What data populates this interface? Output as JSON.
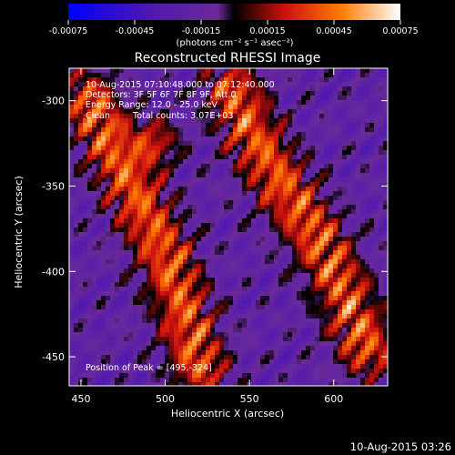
{
  "chart_data": {
    "type": "heatmap",
    "title": "Reconstructed RHESSI Image",
    "xlabel": "Heliocentric X (arcsec)",
    "ylabel": "Heliocentric Y (arcsec)",
    "xlim": [
      443,
      632
    ],
    "ylim": [
      -467,
      -281
    ],
    "x_ticks": [
      450,
      500,
      550,
      600
    ],
    "y_ticks": [
      -300,
      -350,
      -400,
      -450
    ],
    "colorbar": {
      "range": [
        -0.00075,
        0.00075
      ],
      "tick_labels": [
        "-0.00075",
        "-0.00045",
        "-0.00015",
        "0.00015",
        "0.00045",
        "0.00075"
      ],
      "tick_values": [
        -0.00075,
        -0.00045,
        -0.00015,
        0.00015,
        0.00045,
        0.00075
      ],
      "units_label": "(photons cm⁻² s⁻¹ asec⁻²)",
      "colors": [
        "#0000ff",
        "#5018b0",
        "#6a2a9a",
        "#000000",
        "#cc1010",
        "#ff7a00",
        "#ffffff"
      ]
    },
    "annotations": {
      "time_range": "10-Aug-2015 07:10:48.000 to 07:12:40.000",
      "detectors": "Detectors: 3F 5F 6F 7F 8F 9F, Att 0",
      "energy": "Energy Range: 12.0 - 25.0 keV",
      "clean_label": "Clean",
      "total_counts": "Total counts: 3.07E+03",
      "peak": "Position of Peak = [495,-324]"
    },
    "timestamp": "10-Aug-2015 03:26",
    "peak_position": [
      495,
      -324
    ],
    "bright_ridges": [
      {
        "x": [
          455,
          470,
          485,
          500,
          510,
          520
        ],
        "y": [
          -300,
          -330,
          -360,
          -390,
          -420,
          -455
        ]
      },
      {
        "x": [
          540,
          555,
          570,
          590,
          605,
          620
        ],
        "y": [
          -295,
          -325,
          -350,
          -380,
          -410,
          -445
        ]
      }
    ]
  }
}
